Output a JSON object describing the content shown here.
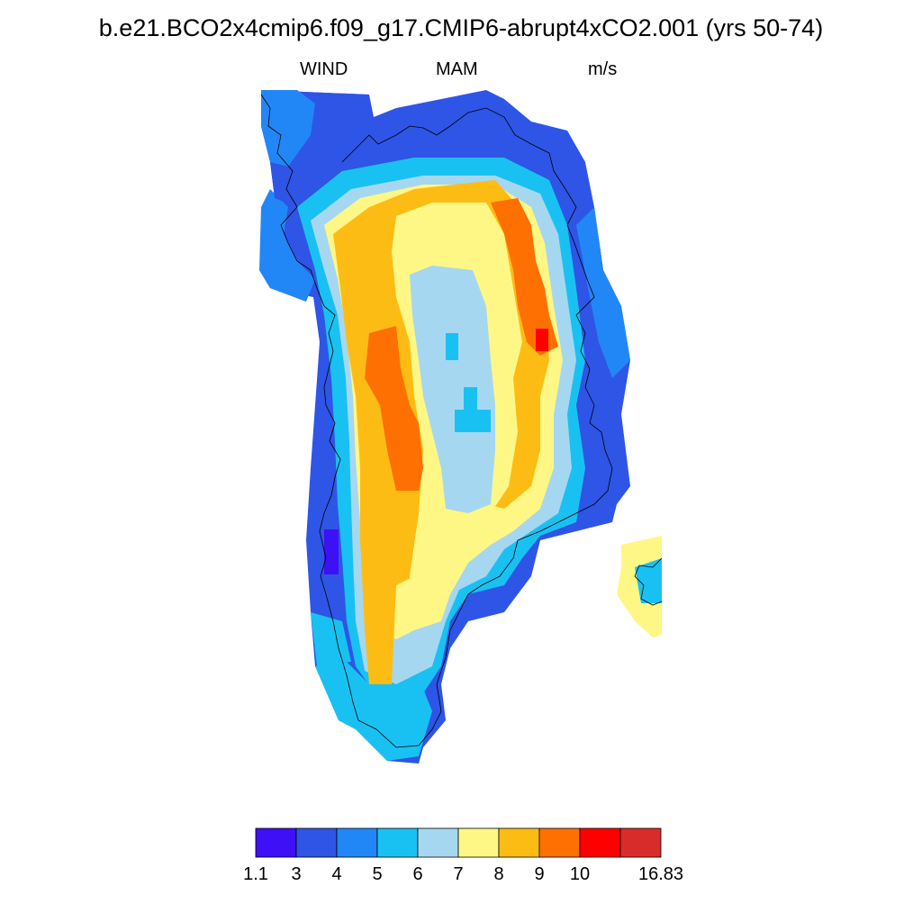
{
  "title": "b.e21.BCO2x4cmip6.f09_g17.CMIP6-abrupt4xCO2.001 (yrs 50-74)",
  "subtitle": {
    "left": "WIND",
    "center": "MAM",
    "right": "m/s"
  },
  "colorbar": {
    "labels": [
      "1.1",
      "3",
      "4",
      "5",
      "6",
      "7",
      "8",
      "9",
      "10",
      "16.83"
    ],
    "colors": [
      "#3d10f5",
      "#2e55e6",
      "#2287f6",
      "#19c1f2",
      "#a6d7f1",
      "#fef785",
      "#fdbc14",
      "#fe7002",
      "#fe0000",
      "#d82c2b"
    ]
  },
  "chart_data": {
    "type": "heatmap",
    "variable": "WIND",
    "season": "MAM",
    "units": "m/s",
    "value_range": [
      1.1,
      16.83
    ],
    "levels": [
      3,
      4,
      5,
      6,
      7,
      8,
      9,
      10
    ],
    "region": "Greenland",
    "features": [
      {
        "name": "central ice sheet",
        "value_band": "6-7"
      },
      {
        "name": "interior ring",
        "value_band": "7-8"
      },
      {
        "name": "eastern slope jet",
        "value_band": "9-10"
      },
      {
        "name": "eastern slope max",
        "value_band": "10-16.83"
      },
      {
        "name": "western slope jet",
        "value_band": "9-10"
      },
      {
        "name": "coastal margins",
        "value_band": "3-6"
      }
    ]
  }
}
